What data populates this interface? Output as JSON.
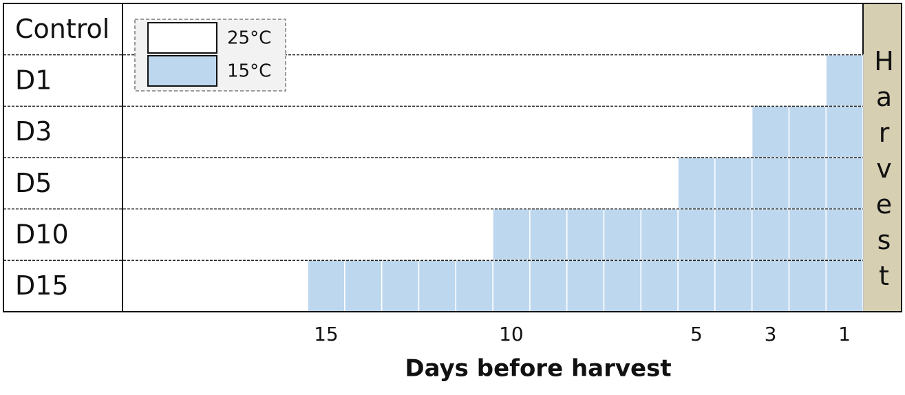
{
  "chart_data": {
    "type": "schedule",
    "rows": [
      {
        "label": "Control",
        "cold_days": 0
      },
      {
        "label": "D1",
        "cold_days": 1
      },
      {
        "label": "D3",
        "cold_days": 3
      },
      {
        "label": "D5",
        "cold_days": 5
      },
      {
        "label": "D10",
        "cold_days": 10
      },
      {
        "label": "D15",
        "cold_days": 15
      }
    ],
    "xlim": [
      20,
      0
    ],
    "xticks": [
      15,
      10,
      5,
      3,
      1
    ],
    "x_label": "Days before harvest",
    "end_label": "Harvest",
    "end_color": "#d6cfb2",
    "legend": [
      {
        "label": "25°C",
        "color": "#ffffff"
      },
      {
        "label": "15°C",
        "color": "#bdd7ee"
      }
    ]
  }
}
